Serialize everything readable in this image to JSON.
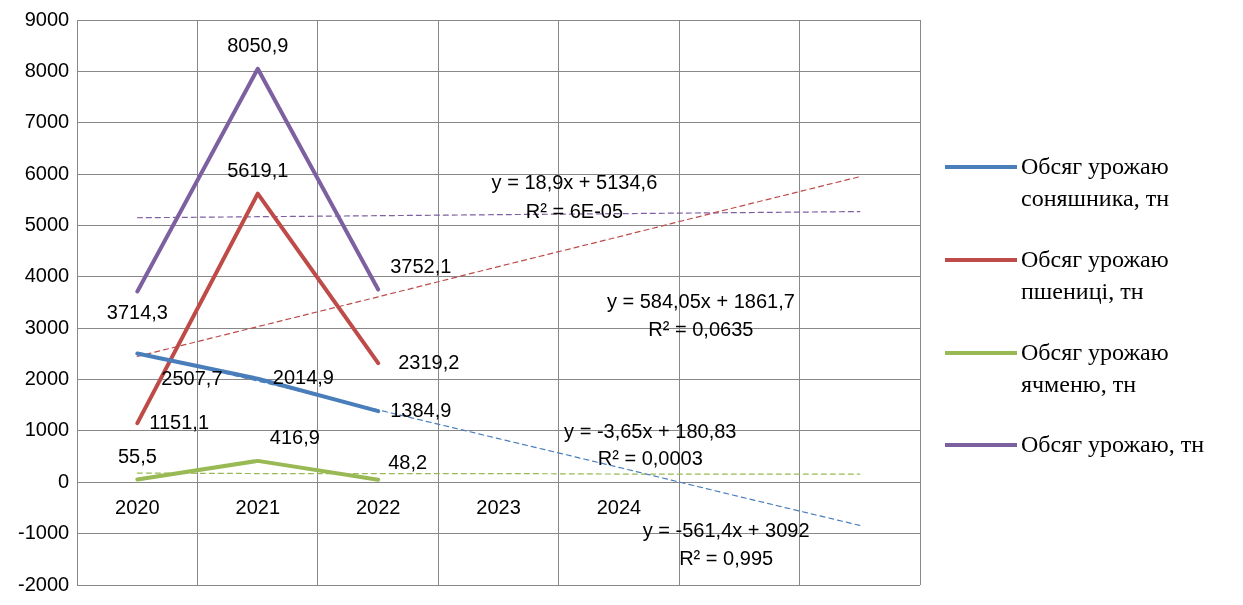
{
  "chart_data": {
    "type": "line",
    "categories": [
      "2020",
      "2021",
      "2022",
      "2023",
      "2024",
      null,
      null
    ],
    "series": [
      {
        "name": "Обсяг урожаю соняшника, тн",
        "color": "#4a7ebb",
        "values": [
          2507.7,
          2014.9,
          1384.9,
          null,
          null,
          null,
          null
        ],
        "value_labels": [
          "2507,7",
          "2014,9",
          "1384,9",
          null,
          null,
          null,
          null
        ]
      },
      {
        "name": "Обсяг урожаю пшениці, тн",
        "color": "#be4b48",
        "values": [
          1151.1,
          5619.1,
          2319.2,
          null,
          null,
          null,
          null
        ],
        "value_labels": [
          "1151,1",
          "5619,1",
          "2319,2",
          null,
          null,
          null,
          null
        ]
      },
      {
        "name": "Обсяг урожаю ячменю, тн",
        "color": "#98b954",
        "values": [
          55.5,
          416.9,
          48.2,
          null,
          null,
          null,
          null
        ],
        "value_labels": [
          "55,5",
          "416,9",
          "48,2",
          null,
          null,
          null,
          null
        ]
      },
      {
        "name": "Обсяг урожаю, тн",
        "color": "#7d60a0",
        "values": [
          3714.3,
          8050.9,
          3752.1,
          null,
          null,
          null,
          null
        ],
        "value_labels": [
          "3714,3",
          "8050,9",
          "3752,1",
          null,
          null,
          null,
          null
        ]
      },
      {
        "type": "line",
        "line_style": "dashed",
        "color": "#4a7ebb",
        "values": [
          2530,
          1970,
          1410,
          850,
          290,
          -280,
          -840
        ]
      },
      {
        "type": "line",
        "line_style": "dashed",
        "color": "#be4b48",
        "values": [
          2450,
          3030,
          3610,
          4200,
          4780,
          5370,
          5950
        ]
      },
      {
        "type": "line",
        "line_style": "dashed",
        "color": "#98b954",
        "values": [
          180,
          170,
          170,
          170,
          160,
          160,
          160
        ]
      },
      {
        "type": "line",
        "line_style": "dashed",
        "color": "#7d60a0",
        "values": [
          5150,
          5170,
          5190,
          5210,
          5230,
          5250,
          5270
        ]
      }
    ],
    "ylim": [
      -2000,
      9000
    ],
    "yticks": [
      -2000,
      -1000,
      0,
      1000,
      2000,
      3000,
      4000,
      5000,
      6000,
      7000,
      8000,
      9000
    ],
    "grid": true,
    "legend": "right",
    "marker": "none",
    "line_style": "solid",
    "annotations": [
      "y = -561,4x + 3092",
      "R² = 0,995",
      "y = 584,05x + 1861,7",
      "R² = 0,0635",
      "y = -3,65x + 180,83",
      "R² = 0,0003",
      "y = 18,9x + 5134,6",
      "R² = 6E-05"
    ]
  }
}
